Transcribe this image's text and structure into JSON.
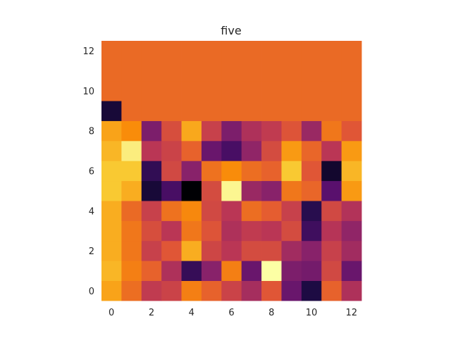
{
  "chart_data": {
    "type": "heatmap",
    "title": "five",
    "xlabel": "",
    "ylabel": "",
    "xlim": [
      -0.5,
      12.5
    ],
    "ylim": [
      -0.5,
      12.5
    ],
    "x_ticks": [
      "0",
      "2",
      "4",
      "6",
      "8",
      "10",
      "12"
    ],
    "y_ticks": [
      "0",
      "2",
      "4",
      "6",
      "8",
      "10",
      "12"
    ],
    "grid": false,
    "colormap": "inferno",
    "value_range": [
      0,
      1
    ],
    "values": [
      [
        0.8,
        0.68,
        0.52,
        0.55,
        0.72,
        0.65,
        0.55,
        0.45,
        0.62,
        0.3,
        0.12,
        0.65,
        0.47
      ],
      [
        0.84,
        0.72,
        0.65,
        0.47,
        0.18,
        0.38,
        0.72,
        0.3,
        1.0,
        0.35,
        0.33,
        0.57,
        0.3
      ],
      [
        0.82,
        0.7,
        0.54,
        0.62,
        0.82,
        0.56,
        0.5,
        0.58,
        0.58,
        0.44,
        0.38,
        0.54,
        0.44
      ],
      [
        0.82,
        0.7,
        0.59,
        0.5,
        0.7,
        0.61,
        0.47,
        0.52,
        0.5,
        0.58,
        0.2,
        0.49,
        0.4
      ],
      [
        0.82,
        0.67,
        0.54,
        0.69,
        0.74,
        0.57,
        0.5,
        0.68,
        0.64,
        0.54,
        0.15,
        0.57,
        0.48
      ],
      [
        0.88,
        0.82,
        0.1,
        0.22,
        0.0,
        0.58,
        0.98,
        0.42,
        0.38,
        0.7,
        0.66,
        0.26,
        0.78
      ],
      [
        0.88,
        0.88,
        0.17,
        0.57,
        0.38,
        0.69,
        0.75,
        0.68,
        0.65,
        0.88,
        0.62,
        0.08,
        0.84
      ],
      [
        0.84,
        0.96,
        0.5,
        0.55,
        0.65,
        0.3,
        0.22,
        0.4,
        0.58,
        0.78,
        0.66,
        0.5,
        0.78
      ],
      [
        0.8,
        0.75,
        0.35,
        0.59,
        0.81,
        0.54,
        0.35,
        0.47,
        0.52,
        0.61,
        0.42,
        0.7,
        0.62
      ],
      [
        0.1,
        0.67,
        0.67,
        0.67,
        0.67,
        0.67,
        0.67,
        0.67,
        0.67,
        0.67,
        0.67,
        0.67,
        0.67
      ],
      [
        0.67,
        0.67,
        0.67,
        0.67,
        0.67,
        0.67,
        0.67,
        0.67,
        0.67,
        0.67,
        0.67,
        0.67,
        0.67
      ],
      [
        0.67,
        0.67,
        0.67,
        0.67,
        0.67,
        0.67,
        0.67,
        0.67,
        0.67,
        0.67,
        0.67,
        0.67,
        0.67
      ],
      [
        0.67,
        0.67,
        0.67,
        0.67,
        0.67,
        0.67,
        0.67,
        0.67,
        0.67,
        0.67,
        0.67,
        0.67,
        0.67
      ]
    ]
  }
}
